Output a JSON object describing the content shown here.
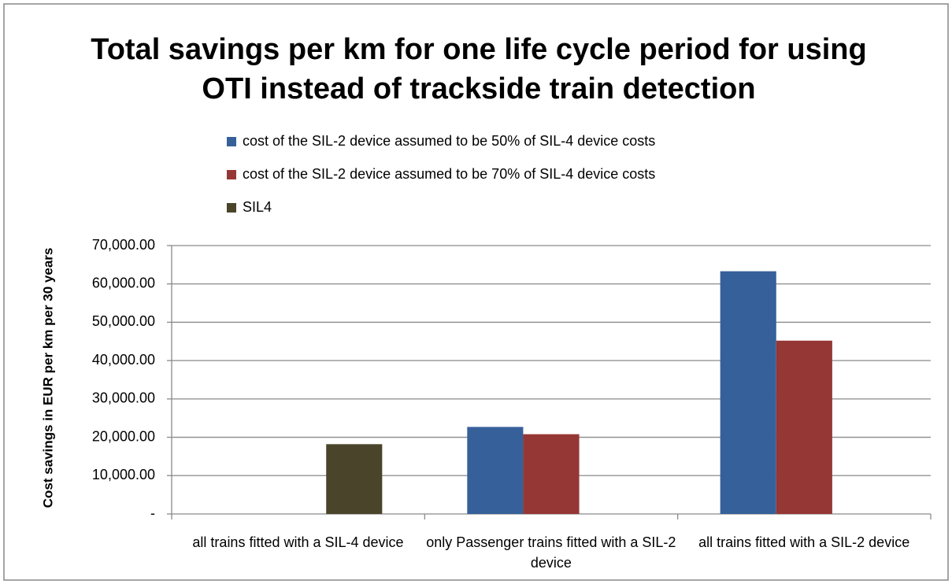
{
  "chart_data": {
    "type": "bar",
    "title": "Total savings per km for one life cycle period for using OTI instead of trackside train detection",
    "y_label": "Cost savings in EUR per km per 30 years",
    "categories": [
      "all trains fitted with a SIL-4 device",
      "only Passenger trains fitted with a SIL-2 device",
      "all trains fitted with a SIL-2 device"
    ],
    "series": [
      {
        "name": "cost of the SIL-2 device assumed to be 50% of SIL-4 device costs",
        "color": "#36609a",
        "values": [
          null,
          22700,
          63300
        ]
      },
      {
        "name": "cost of the SIL-2 device assumed to be 70% of SIL-4 device costs",
        "color": "#953735",
        "values": [
          null,
          20800,
          45200
        ]
      },
      {
        "name": "SIL4",
        "color": "#4a442a",
        "values": [
          18200,
          null,
          null
        ]
      }
    ],
    "ylim": [
      0,
      70000
    ],
    "yticks": [
      {
        "value": 0,
        "label": "-"
      },
      {
        "value": 10000,
        "label": "10,000.00"
      },
      {
        "value": 20000,
        "label": "20,000.00"
      },
      {
        "value": 30000,
        "label": "30,000.00"
      },
      {
        "value": 40000,
        "label": "40,000.00"
      },
      {
        "value": 50000,
        "label": "50,000.00"
      },
      {
        "value": 60000,
        "label": "60,000.00"
      },
      {
        "value": 70000,
        "label": "70,000.00"
      }
    ],
    "grid": true,
    "legend": "top"
  }
}
